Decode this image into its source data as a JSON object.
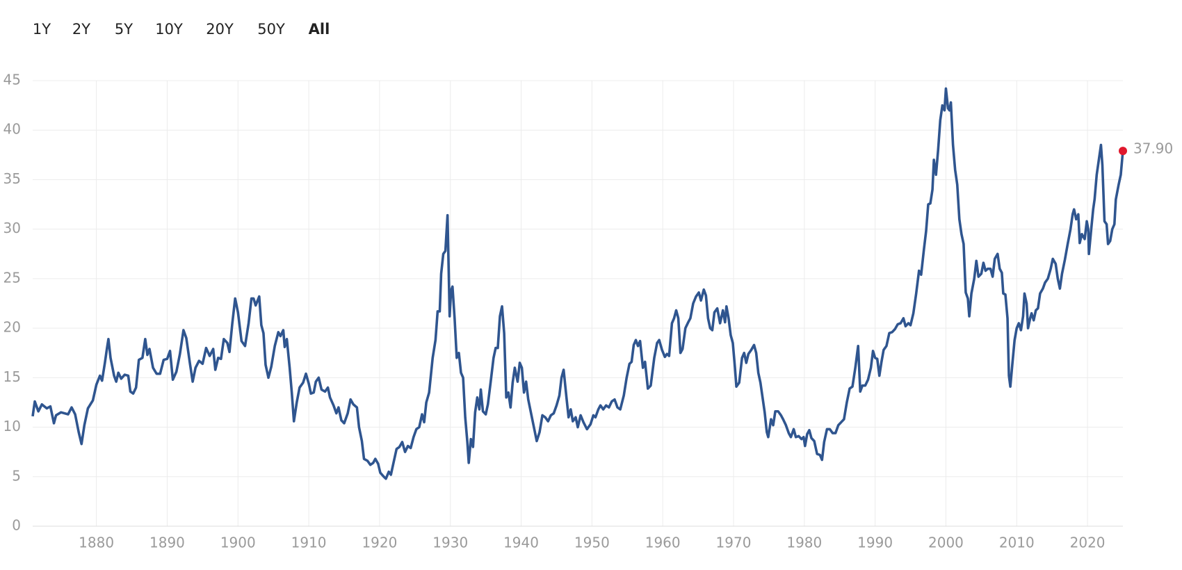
{
  "ranges": [
    "1Y",
    "2Y",
    "5Y",
    "10Y",
    "20Y",
    "50Y",
    "All"
  ],
  "selected_range": 6,
  "chart_data": {
    "type": "line",
    "color": "#2f558f",
    "grid": true,
    "xlim": [
      1871,
      2025
    ],
    "xticks": [
      1880,
      1890,
      1900,
      1910,
      1920,
      1930,
      1940,
      1950,
      1960,
      1970,
      1980,
      1990,
      2000,
      2010,
      2020
    ],
    "ylim": [
      0,
      45
    ],
    "yticks": [
      0,
      5,
      10,
      15,
      20,
      25,
      30,
      35,
      40,
      45
    ],
    "x": [
      1871,
      1871.3,
      1871.8,
      1872.3,
      1873,
      1873.5,
      1874,
      1874.3,
      1875,
      1876,
      1876.5,
      1877,
      1877.5,
      1877.9,
      1878.3,
      1878.8,
      1879.5,
      1880,
      1880.5,
      1880.8,
      1881.2,
      1881.5,
      1881.7,
      1882,
      1882.5,
      1882.8,
      1883.1,
      1883.5,
      1884,
      1884.5,
      1884.8,
      1885.2,
      1885.6,
      1886,
      1886.5,
      1886.9,
      1887.2,
      1887.5,
      1888,
      1888.5,
      1889,
      1889.5,
      1890,
      1890.4,
      1890.8,
      1891.3,
      1891.8,
      1892.3,
      1892.7,
      1893.2,
      1893.6,
      1894,
      1894.5,
      1895,
      1895.5,
      1896,
      1896.5,
      1896.8,
      1897.2,
      1897.6,
      1898,
      1898.5,
      1898.8,
      1899.2,
      1899.6,
      1900,
      1900.5,
      1901,
      1901.5,
      1901.9,
      1902.2,
      1902.5,
      1903,
      1903.3,
      1903.6,
      1903.9,
      1904.3,
      1904.7,
      1905.2,
      1905.7,
      1906,
      1906.4,
      1906.6,
      1906.9,
      1907.3,
      1907.6,
      1907.9,
      1908.3,
      1908.7,
      1909.2,
      1909.6,
      1910,
      1910.3,
      1910.7,
      1911,
      1911.4,
      1911.8,
      1912.3,
      1912.7,
      1913,
      1913.5,
      1913.9,
      1914.2,
      1914.6,
      1915,
      1915.5,
      1915.9,
      1916.3,
      1916.8,
      1917.1,
      1917.5,
      1917.8,
      1918.3,
      1918.7,
      1919.1,
      1919.4,
      1919.8,
      1920.1,
      1920.6,
      1920.9,
      1921.3,
      1921.6,
      1922,
      1922.4,
      1922.8,
      1923.2,
      1923.6,
      1924,
      1924.4,
      1924.8,
      1925.2,
      1925.6,
      1926,
      1926.3,
      1926.6,
      1927,
      1927.5,
      1927.9,
      1928.2,
      1928.5,
      1928.7,
      1929,
      1929.3,
      1929.6,
      1929.9,
      1930.1,
      1930.3,
      1930.6,
      1930.9,
      1931.2,
      1931.5,
      1931.8,
      1932.1,
      1932.4,
      1932.6,
      1932.9,
      1933.2,
      1933.5,
      1933.8,
      1934.1,
      1934.3,
      1934.6,
      1935,
      1935.3,
      1935.7,
      1936.1,
      1936.4,
      1936.7,
      1937,
      1937.3,
      1937.6,
      1937.9,
      1938.2,
      1938.5,
      1938.8,
      1939.1,
      1939.5,
      1939.8,
      1940.1,
      1940.4,
      1940.7,
      1941,
      1941.4,
      1941.8,
      1942.2,
      1942.6,
      1943,
      1943.4,
      1943.8,
      1944.2,
      1944.6,
      1945,
      1945.4,
      1945.7,
      1946,
      1946.4,
      1946.7,
      1947,
      1947.3,
      1947.7,
      1948,
      1948.4,
      1948.8,
      1949.3,
      1949.8,
      1950.2,
      1950.5,
      1950.9,
      1951.2,
      1951.6,
      1952,
      1952.4,
      1952.8,
      1953.2,
      1953.6,
      1954,
      1954.5,
      1954.9,
      1955.3,
      1955.6,
      1955.9,
      1956.2,
      1956.5,
      1956.8,
      1957.2,
      1957.5,
      1957.9,
      1958.3,
      1958.8,
      1959.2,
      1959.5,
      1959.9,
      1960.3,
      1960.6,
      1960.9,
      1961.3,
      1961.6,
      1961.9,
      1962.2,
      1962.5,
      1962.8,
      1963.2,
      1963.6,
      1963.9,
      1964.3,
      1964.7,
      1965.1,
      1965.4,
      1965.8,
      1966.1,
      1966.4,
      1966.7,
      1967,
      1967.3,
      1967.7,
      1968.1,
      1968.5,
      1968.8,
      1969,
      1969.3,
      1969.6,
      1969.9,
      1970.2,
      1970.4,
      1970.8,
      1971.2,
      1971.5,
      1971.8,
      1972.1,
      1972.5,
      1972.9,
      1973.2,
      1973.5,
      1973.8,
      1974.1,
      1974.4,
      1974.7,
      1974.9,
      1975.3,
      1975.6,
      1975.9,
      1976.3,
      1976.7,
      1977,
      1977.4,
      1977.8,
      1978.1,
      1978.5,
      1978.8,
      1979.2,
      1979.6,
      1979.9,
      1980.1,
      1980.4,
      1980.7,
      1981,
      1981.4,
      1981.8,
      1982.2,
      1982.5,
      1982.8,
      1983.2,
      1983.6,
      1984,
      1984.4,
      1984.8,
      1985.2,
      1985.6,
      1986,
      1986.4,
      1986.8,
      1987.2,
      1987.6,
      1987.9,
      1988.2,
      1988.6,
      1989,
      1989.4,
      1989.7,
      1990,
      1990.3,
      1990.6,
      1990.9,
      1991.2,
      1991.6,
      1992,
      1992.4,
      1992.8,
      1993.2,
      1993.6,
      1994,
      1994.3,
      1994.7,
      1995,
      1995.4,
      1995.8,
      1996.2,
      1996.5,
      1996.9,
      1997.2,
      1997.5,
      1997.8,
      1998.1,
      1998.3,
      1998.6,
      1998.9,
      1999.2,
      1999.5,
      1999.8,
      2000,
      2000.3,
      2000.5,
      2000.7,
      2001,
      2001.3,
      2001.6,
      2001.9,
      2002.2,
      2002.5,
      2002.8,
      2003.1,
      2003.3,
      2003.6,
      2004,
      2004.3,
      2004.6,
      2005,
      2005.3,
      2005.6,
      2005.9,
      2006.3,
      2006.6,
      2006.9,
      2007.3,
      2007.6,
      2007.9,
      2008.1,
      2008.4,
      2008.7,
      2008.9,
      2009.1,
      2009.4,
      2009.7,
      2010,
      2010.3,
      2010.6,
      2010.9,
      2011.1,
      2011.4,
      2011.6,
      2011.9,
      2012.1,
      2012.4,
      2012.7,
      2013,
      2013.3,
      2013.7,
      2014,
      2014.4,
      2014.8,
      2015.1,
      2015.5,
      2015.8,
      2016.1,
      2016.4,
      2016.8,
      2017.2,
      2017.6,
      2017.9,
      2018.1,
      2018.4,
      2018.7,
      2018.9,
      2019.2,
      2019.6,
      2019.9,
      2020.1,
      2020.2,
      2020.5,
      2020.8,
      2021,
      2021.3,
      2021.6,
      2021.9,
      2022.1,
      2022.4,
      2022.7,
      2022.9,
      2023.2,
      2023.5,
      2023.8,
      2024,
      2024.4,
      2024.7,
      2025
    ],
    "values": [
      11.1,
      12.6,
      11.6,
      12.3,
      11.9,
      12.1,
      10.4,
      11.2,
      11.5,
      11.3,
      12.0,
      11.3,
      9.5,
      8.3,
      10.2,
      11.9,
      12.7,
      14.3,
      15.2,
      14.7,
      16.5,
      18.0,
      18.9,
      17.0,
      15.2,
      14.6,
      15.5,
      14.9,
      15.3,
      15.2,
      13.6,
      13.4,
      14.0,
      16.8,
      17.0,
      18.9,
      17.3,
      17.9,
      16.0,
      15.4,
      15.4,
      16.8,
      16.9,
      17.7,
      14.8,
      15.6,
      17.4,
      19.8,
      19.0,
      16.5,
      14.6,
      16.0,
      16.7,
      16.4,
      18.0,
      17.2,
      17.9,
      15.8,
      17.0,
      16.9,
      18.9,
      18.5,
      17.6,
      20.5,
      23.0,
      21.6,
      18.7,
      18.2,
      20.5,
      23.0,
      23.0,
      22.3,
      23.2,
      20.3,
      19.5,
      16.3,
      15.0,
      16.1,
      18.2,
      19.6,
      19.2,
      19.8,
      18.1,
      18.9,
      16.0,
      13.5,
      10.6,
      12.5,
      14.0,
      14.5,
      15.4,
      14.4,
      13.4,
      13.5,
      14.6,
      15.0,
      13.8,
      13.6,
      14.0,
      13.0,
      12.2,
      11.4,
      12.0,
      10.7,
      10.4,
      11.4,
      12.8,
      12.3,
      12.0,
      10.0,
      8.6,
      6.8,
      6.6,
      6.2,
      6.4,
      6.8,
      6.3,
      5.4,
      5.0,
      4.8,
      5.5,
      5.2,
      6.5,
      7.8,
      8.0,
      8.5,
      7.5,
      8.1,
      7.9,
      9.0,
      9.8,
      10.0,
      11.3,
      10.5,
      12.5,
      13.5,
      17.0,
      18.8,
      21.7,
      21.7,
      25.5,
      27.5,
      27.8,
      31.4,
      21.2,
      23.8,
      24.2,
      21.0,
      17.0,
      17.5,
      15.5,
      15.0,
      11.0,
      8.5,
      6.4,
      8.8,
      8.0,
      11.5,
      13.0,
      11.8,
      13.8,
      11.6,
      11.3,
      12.3,
      14.6,
      17.0,
      18.0,
      18.0,
      21.2,
      22.2,
      19.5,
      13.0,
      13.5,
      12.0,
      14.5,
      16.0,
      14.6,
      16.5,
      16.0,
      13.5,
      14.6,
      12.8,
      11.4,
      10.0,
      8.6,
      9.5,
      11.2,
      11.0,
      10.6,
      11.2,
      11.4,
      12.2,
      13.2,
      15.0,
      15.8,
      13.0,
      11.0,
      11.8,
      10.6,
      11.0,
      10.0,
      11.2,
      10.5,
      9.8,
      10.3,
      11.2,
      11.0,
      11.8,
      12.2,
      11.8,
      12.2,
      12.0,
      12.6,
      12.8,
      12.0,
      11.8,
      13.2,
      15.0,
      16.4,
      16.6,
      18.3,
      18.8,
      18.2,
      18.7,
      16.0,
      16.6,
      13.9,
      14.2,
      17.0,
      18.5,
      18.8,
      17.8,
      17.1,
      17.4,
      17.2,
      20.5,
      21.0,
      21.8,
      21.0,
      17.5,
      17.9,
      20.0,
      20.6,
      21.0,
      22.5,
      23.2,
      23.6,
      22.8,
      23.9,
      23.3,
      21.0,
      20.0,
      19.8,
      21.6,
      22.0,
      20.5,
      21.8,
      20.6,
      22.2,
      21.0,
      19.3,
      18.5,
      16.0,
      14.1,
      14.5,
      17.0,
      17.5,
      16.5,
      17.4,
      17.8,
      18.3,
      17.5,
      15.5,
      14.5,
      13.0,
      11.5,
      9.5,
      9.0,
      10.8,
      10.2,
      11.6,
      11.6,
      11.2,
      10.8,
      10.2,
      9.4,
      9.0,
      9.8,
      9.0,
      9.1,
      8.8,
      9.0,
      8.1,
      9.3,
      9.7,
      8.9,
      8.6,
      7.3,
      7.2,
      6.7,
      8.5,
      9.8,
      9.8,
      9.4,
      9.4,
      10.2,
      10.5,
      10.8,
      12.5,
      13.9,
      14.1,
      16.0,
      18.2,
      13.6,
      14.2,
      14.2,
      14.8,
      16.0,
      17.7,
      17.0,
      16.9,
      15.2,
      16.6,
      17.8,
      18.2,
      19.5,
      19.6,
      19.9,
      20.4,
      20.5,
      21.0,
      20.2,
      20.5,
      20.3,
      21.5,
      23.5,
      25.8,
      25.4,
      28.0,
      29.8,
      32.5,
      32.6,
      34.0,
      37.0,
      35.5,
      38.0,
      41.0,
      42.5,
      42.0,
      44.2,
      42.2,
      42.0,
      42.8,
      38.5,
      36.0,
      34.5,
      31.0,
      29.5,
      28.5,
      23.6,
      23.0,
      21.2,
      23.5,
      25.0,
      26.8,
      25.2,
      25.5,
      26.6,
      25.8,
      26.0,
      26.0,
      25.2,
      27.0,
      27.5,
      26.0,
      25.6,
      23.5,
      23.4,
      21.0,
      15.2,
      14.1,
      16.5,
      18.8,
      20.0,
      20.5,
      19.8,
      21.2,
      23.5,
      22.5,
      20.0,
      21.0,
      21.5,
      20.8,
      21.8,
      22.0,
      23.5,
      24.0,
      24.6,
      25.0,
      26.0,
      27.0,
      26.5,
      25.0,
      24.0,
      25.5,
      26.9,
      28.5,
      30.0,
      31.5,
      32.0,
      31.0,
      31.5,
      28.6,
      29.5,
      29.0,
      30.8,
      30.0,
      27.5,
      29.8,
      32.0,
      33.0,
      35.5,
      37.0,
      38.5,
      36.5,
      30.8,
      30.5,
      28.5,
      28.8,
      30.0,
      30.5,
      33.0,
      34.5,
      35.5,
      37.9
    ],
    "last_point": {
      "x": 2025,
      "value": 37.9,
      "label": "37.90",
      "color": "#e0182d"
    }
  }
}
